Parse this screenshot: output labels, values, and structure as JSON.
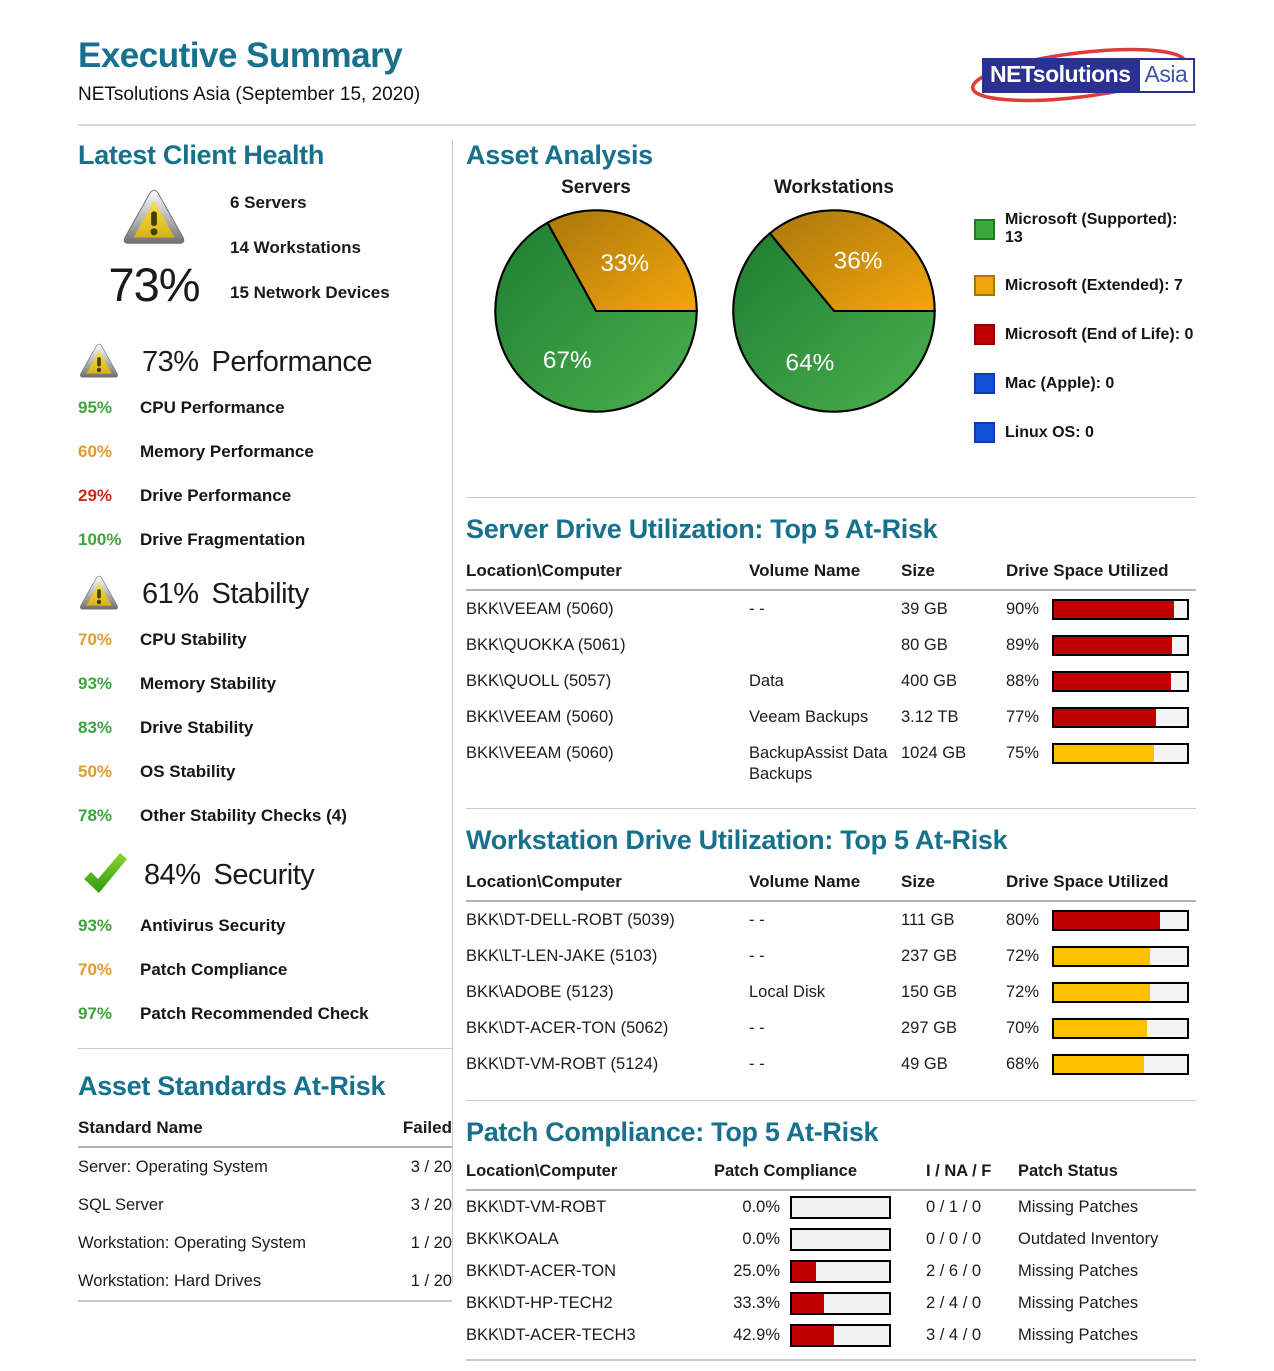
{
  "header": {
    "title": "Executive Summary",
    "subtitle": "NETsolutions Asia (September 15, 2020)",
    "logo_primary": "NETsolutions",
    "logo_secondary": "Asia"
  },
  "colors": {
    "accent_teal": "#17718C",
    "good_green": "#3FA43C",
    "warn_orange": "#E39B2D",
    "bad_red": "#CE2A1C",
    "bar_red": "#C00000",
    "bar_yellow": "#FFC000",
    "legend_blue": "#1353D9",
    "logo_navy": "#2B3192",
    "logo_ellipse_red": "#E03A3A"
  },
  "client_health": {
    "title": "Latest Client Health",
    "overall_score": "73%",
    "overall_icon": "warning-icon",
    "stats": [
      "6 Servers",
      "14 Workstations",
      "15 Network Devices"
    ],
    "sections": [
      {
        "icon": "warning-icon",
        "score": "73%",
        "label": "Performance",
        "metrics": [
          {
            "value": "95%",
            "status": "green",
            "label": "CPU Performance"
          },
          {
            "value": "60%",
            "status": "orange",
            "label": "Memory Performance"
          },
          {
            "value": "29%",
            "status": "red",
            "label": "Drive Performance"
          },
          {
            "value": "100%",
            "status": "green",
            "label": "Drive Fragmentation"
          }
        ]
      },
      {
        "icon": "warning-icon",
        "score": "61%",
        "label": "Stability",
        "metrics": [
          {
            "value": "70%",
            "status": "orange",
            "label": "CPU Stability"
          },
          {
            "value": "93%",
            "status": "green",
            "label": "Memory Stability"
          },
          {
            "value": "83%",
            "status": "green",
            "label": "Drive Stability"
          },
          {
            "value": "50%",
            "status": "orange",
            "label": "OS Stability"
          },
          {
            "value": "78%",
            "status": "green",
            "label": "Other Stability Checks (4)"
          }
        ]
      },
      {
        "icon": "check-icon",
        "score": "84%",
        "label": "Security",
        "metrics": [
          {
            "value": "93%",
            "status": "green",
            "label": "Antivirus Security"
          },
          {
            "value": "70%",
            "status": "orange",
            "label": "Patch Compliance"
          },
          {
            "value": "97%",
            "status": "green",
            "label": "Patch Recommended Check"
          }
        ]
      }
    ]
  },
  "asset_standards": {
    "title": "Asset Standards At-Risk",
    "columns": {
      "name": "Standard Name",
      "failed": "Failed"
    },
    "rows": [
      {
        "name": "Server: Operating System",
        "failed": "3 / 20"
      },
      {
        "name": "SQL Server",
        "failed": "3 / 20"
      },
      {
        "name": "Workstation: Operating System",
        "failed": "1 / 20"
      },
      {
        "name": "Workstation: Hard Drives",
        "failed": "1 / 20"
      }
    ]
  },
  "asset_analysis": {
    "title": "Asset Analysis",
    "legend": [
      {
        "label": "Microsoft (Supported): 13",
        "color": "green"
      },
      {
        "label": "Microsoft (Extended): 7",
        "color": "orange"
      },
      {
        "label": "Microsoft (End of Life): 0",
        "color": "red"
      },
      {
        "label": "Mac (Apple): 0",
        "color": "blue"
      },
      {
        "label": "Linux OS: 0",
        "color": "blue"
      }
    ]
  },
  "chart_data": [
    {
      "type": "pie",
      "title": "Servers",
      "slices": [
        {
          "label": "Microsoft (Extended)",
          "value": 33,
          "text": "33%",
          "color": "orange"
        },
        {
          "label": "Microsoft (Supported)",
          "value": 67,
          "text": "67%",
          "color": "green"
        }
      ]
    },
    {
      "type": "pie",
      "title": "Workstations",
      "slices": [
        {
          "label": "Microsoft (Extended)",
          "value": 36,
          "text": "36%",
          "color": "orange"
        },
        {
          "label": "Microsoft (Supported)",
          "value": 64,
          "text": "64%",
          "color": "green"
        }
      ]
    }
  ],
  "server_drive": {
    "title": "Server Drive Utilization: Top 5 At-Risk",
    "columns": {
      "location": "Location\\Computer",
      "volume": "Volume Name",
      "size": "Size",
      "utilized": "Drive Space Utilized"
    },
    "rows": [
      {
        "location": "BKK\\VEEAM (5060)",
        "volume": "- -",
        "size": "39 GB",
        "pct_text": "90%",
        "pct": 90,
        "bar": "red"
      },
      {
        "location": "BKK\\QUOKKA (5061)",
        "volume": "",
        "size": "80 GB",
        "pct_text": "89%",
        "pct": 89,
        "bar": "red"
      },
      {
        "location": "BKK\\QUOLL (5057)",
        "volume": "Data",
        "size": "400 GB",
        "pct_text": "88%",
        "pct": 88,
        "bar": "red"
      },
      {
        "location": "BKK\\VEEAM (5060)",
        "volume": "Veeam Backups",
        "size": "3.12 TB",
        "pct_text": "77%",
        "pct": 77,
        "bar": "red"
      },
      {
        "location": "BKK\\VEEAM (5060)",
        "volume": "BackupAssist Data Backups",
        "size": "1024 GB",
        "pct_text": "75%",
        "pct": 75,
        "bar": "yellow"
      }
    ]
  },
  "workstation_drive": {
    "title": "Workstation Drive Utilization: Top 5 At-Risk",
    "columns": {
      "location": "Location\\Computer",
      "volume": "Volume Name",
      "size": "Size",
      "utilized": "Drive Space Utilized"
    },
    "rows": [
      {
        "location": "BKK\\DT-DELL-ROBT (5039)",
        "volume": "- -",
        "size": "111 GB",
        "pct_text": "80%",
        "pct": 80,
        "bar": "red"
      },
      {
        "location": "BKK\\LT-LEN-JAKE (5103)",
        "volume": "- -",
        "size": "237 GB",
        "pct_text": "72%",
        "pct": 72,
        "bar": "yellow"
      },
      {
        "location": "BKK\\ADOBE (5123)",
        "volume": "Local Disk",
        "size": "150 GB",
        "pct_text": "72%",
        "pct": 72,
        "bar": "yellow"
      },
      {
        "location": "BKK\\DT-ACER-TON (5062)",
        "volume": "- -",
        "size": "297 GB",
        "pct_text": "70%",
        "pct": 70,
        "bar": "yellow"
      },
      {
        "location": "BKK\\DT-VM-ROBT (5124)",
        "volume": "- -",
        "size": "49 GB",
        "pct_text": "68%",
        "pct": 68,
        "bar": "yellow"
      }
    ]
  },
  "patch_compliance": {
    "title": "Patch Compliance: Top 5 At-Risk",
    "columns": {
      "location": "Location\\Computer",
      "compliance": "Patch Compliance",
      "inf": "I / NA / F",
      "status": "Patch Status"
    },
    "rows": [
      {
        "location": "BKK\\DT-VM-ROBT",
        "pct_text": "0.0%",
        "pct": 0,
        "bar": "red",
        "inf": "0 / 1 / 0",
        "status": "Missing Patches"
      },
      {
        "location": "BKK\\KOALA",
        "pct_text": "0.0%",
        "pct": 0,
        "bar": "red",
        "inf": "0 / 0 / 0",
        "status": "Outdated Inventory"
      },
      {
        "location": "BKK\\DT-ACER-TON",
        "pct_text": "25.0%",
        "pct": 25,
        "bar": "red",
        "inf": "2 / 6 / 0",
        "status": "Missing Patches"
      },
      {
        "location": "BKK\\DT-HP-TECH2",
        "pct_text": "33.3%",
        "pct": 33.3,
        "bar": "red",
        "inf": "2 / 4 / 0",
        "status": "Missing Patches"
      },
      {
        "location": "BKK\\DT-ACER-TECH3",
        "pct_text": "42.9%",
        "pct": 42.9,
        "bar": "red",
        "inf": "3 / 4 / 0",
        "status": "Missing Patches"
      }
    ]
  }
}
